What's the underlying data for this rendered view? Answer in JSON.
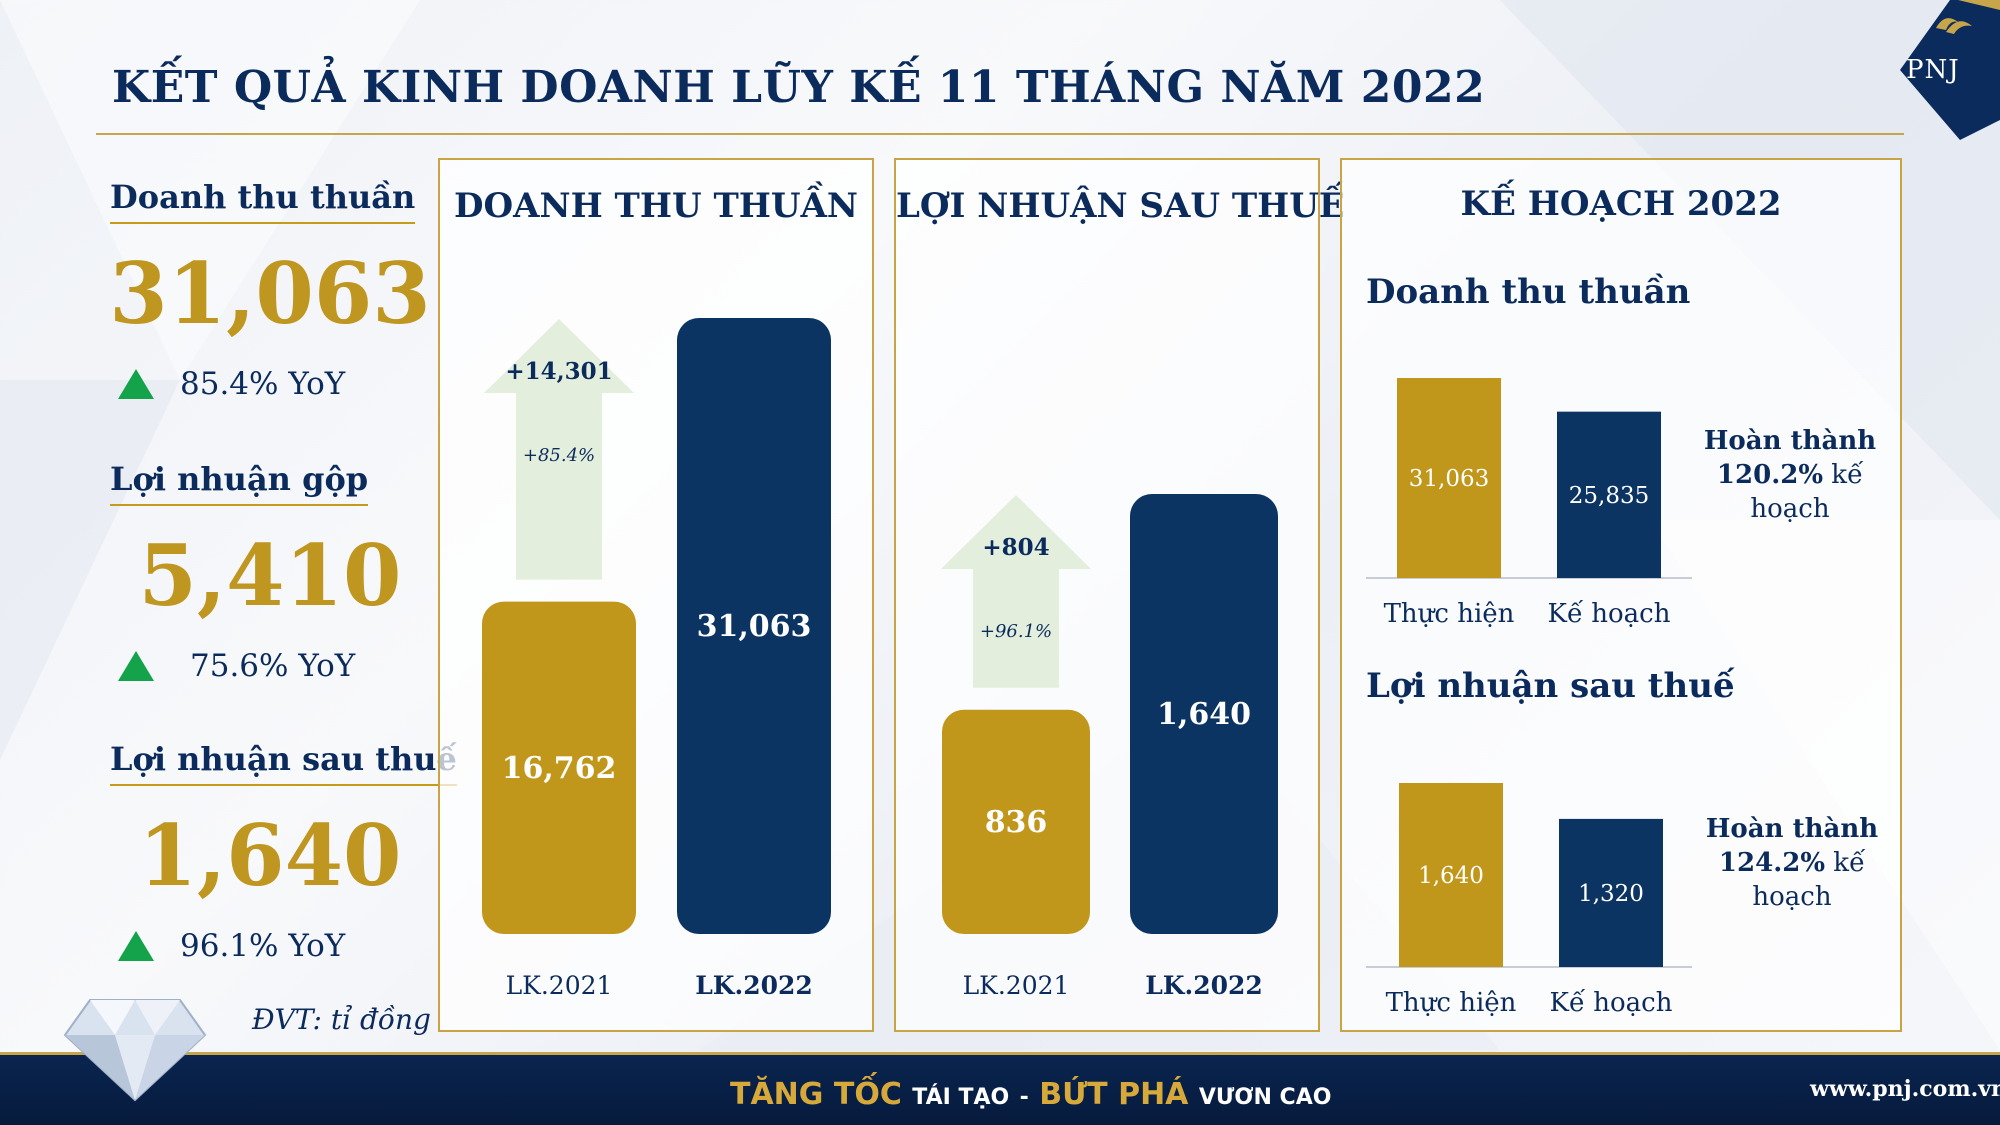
{
  "title": "KẾT QUẢ KINH DOANH LŨY KẾ 11 THÁNG NĂM 2022",
  "logo_text": "PNJ",
  "colors": {
    "gold": "#c0961b",
    "navy": "#0c3463",
    "arrow": "#e3efdc",
    "up": "#14a34a"
  },
  "kpis": [
    {
      "label": "Doanh thu thuần",
      "value": "31,063",
      "yoy": "85.4% YoY"
    },
    {
      "label": "Lợi nhuận gộp",
      "value": "5,410",
      "yoy": "75.6% YoY"
    },
    {
      "label": "Lợi nhuận sau thuế",
      "value": "1,640",
      "yoy": "96.1% YoY"
    }
  ],
  "unit_note": "ĐVT: tỉ đồng",
  "panels": {
    "revenue": {
      "title": "DOANH THU THUẦN"
    },
    "profit": {
      "title": "LỢI NHUẬN SAU THUẾ"
    },
    "plan": {
      "title": "KẾ HOẠCH 2022",
      "revenue_subtitle": "Doanh thu thuần",
      "profit_subtitle": "Lợi nhuận sau thuế",
      "revenue_note": {
        "l1": "Hoàn thành",
        "pct": "120.2%",
        "l2": " kế",
        "l3": "hoạch"
      },
      "profit_note": {
        "l1": "Hoàn thành",
        "pct": "124.2%",
        "l2": " kế",
        "l3": "hoạch"
      }
    }
  },
  "chart_data": [
    {
      "type": "bar",
      "title": "DOANH THU THUẦN",
      "categories": [
        "LK.2021",
        "LK.2022"
      ],
      "values": [
        16762,
        31063
      ],
      "labels": [
        "16,762",
        "31,063"
      ],
      "change": {
        "value": "+14,301",
        "pct": "+85.4%"
      }
    },
    {
      "type": "bar",
      "title": "LỢI NHUẬN SAU THUẾ",
      "categories": [
        "LK.2021",
        "LK.2022"
      ],
      "values": [
        836,
        1640
      ],
      "labels": [
        "836",
        "1,640"
      ],
      "change": {
        "value": "+804",
        "pct": "+96.1%"
      }
    },
    {
      "type": "bar",
      "title": "Doanh thu thuần",
      "categories": [
        "Thực hiện",
        "Kế hoạch"
      ],
      "values": [
        31063,
        25835
      ],
      "labels": [
        "31,063",
        "25,835"
      ]
    },
    {
      "type": "bar",
      "title": "Lợi nhuận sau thuế",
      "categories": [
        "Thực hiện",
        "Kế hoạch"
      ],
      "values": [
        1640,
        1320
      ],
      "labels": [
        "1,640",
        "1,320"
      ]
    }
  ],
  "footer": {
    "slogan_1": "TĂNG TỐC",
    "slogan_2": "TÁI TẠO",
    "slogan_sep": "-",
    "slogan_3": "BỨT PHÁ",
    "slogan_4": "VƯƠN CAO",
    "website": "www.pnj.com.vn"
  }
}
